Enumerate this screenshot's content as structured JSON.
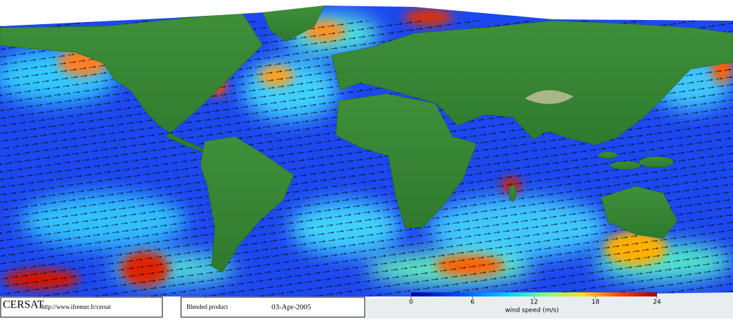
{
  "header": {
    "logo": "CERSAT",
    "url": "http://www.ifremer.fr/cersat"
  },
  "product": {
    "name": "Blended product",
    "date": "03-Apr-2005"
  },
  "colorbar": {
    "label": "wind speed (m/s)",
    "range": [
      0,
      24
    ],
    "ticks": [
      0,
      6,
      12,
      18,
      24
    ]
  }
}
